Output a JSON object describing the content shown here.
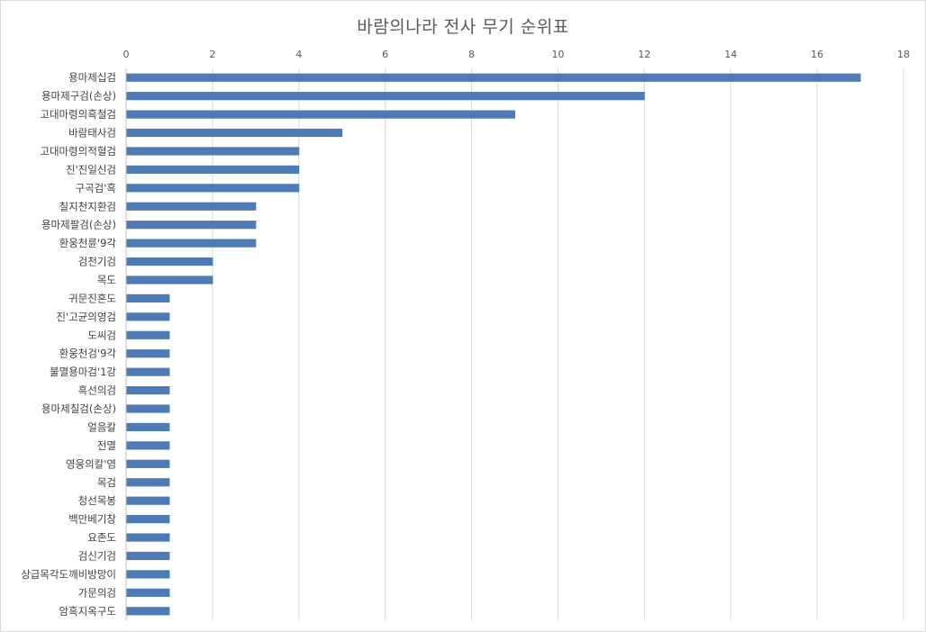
{
  "chart_data": {
    "type": "bar",
    "orientation": "horizontal",
    "title": "바람의나라 전사 무기 순위표",
    "xlabel": "",
    "ylabel": "",
    "xlim": [
      0,
      18
    ],
    "x_ticks": [
      0,
      2,
      4,
      6,
      8,
      10,
      12,
      14,
      16,
      18
    ],
    "x_axis_position": "top",
    "grid": true,
    "legend": "none",
    "bar_color": "#4e7ab5",
    "categories": [
      "용마제십검",
      "용마제구검(손상)",
      "고대마령의흑철검",
      "바람태사검",
      "고대마령의적혈검",
      "진'진일신검",
      "구곡검'흑",
      "칠지천지환검",
      "용마제팔검(손상)",
      "환웅천륜'9각",
      "검천기검",
      "목도",
      "귀문진혼도",
      "진'고균의영검",
      "도씨검",
      "환웅천검'9각",
      "불멸용마검'1강",
      "흑선의검",
      "용마제칠검(손상)",
      "얼음칼",
      "전멸",
      "영웅의칼'염",
      "목검",
      "청선목봉",
      "백만베기창",
      "요존도",
      "검신기검",
      "상급목각도깨비방망이",
      "가문의검",
      "암흑지옥구도"
    ],
    "values": [
      17,
      12,
      9,
      5,
      4,
      4,
      4,
      3,
      3,
      3,
      2,
      2,
      1,
      1,
      1,
      1,
      1,
      1,
      1,
      1,
      1,
      1,
      1,
      1,
      1,
      1,
      1,
      1,
      1,
      1
    ]
  }
}
